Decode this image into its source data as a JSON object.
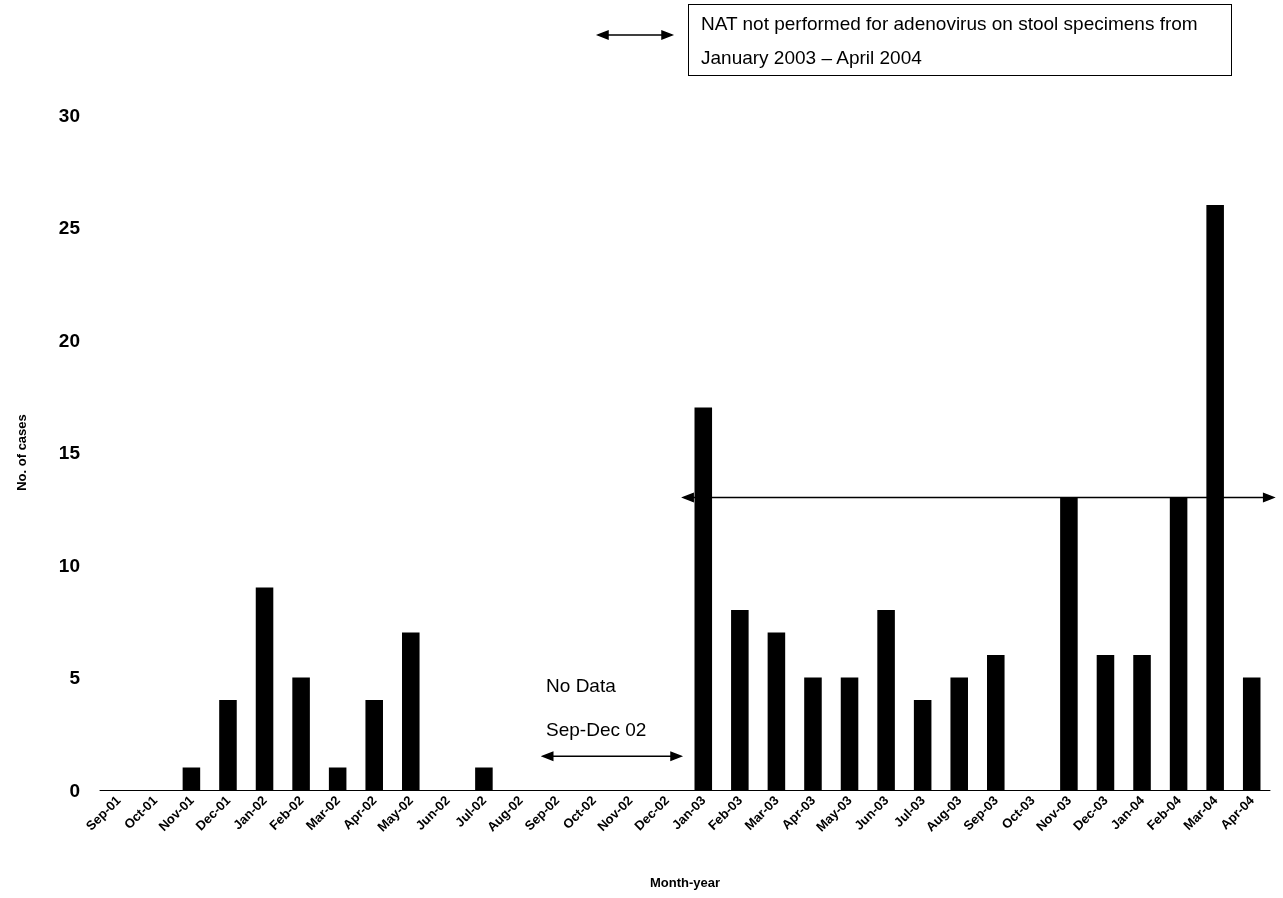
{
  "chart_data": {
    "type": "bar",
    "xlabel": "Month-year",
    "ylabel": "No. of cases",
    "categories": [
      "Sep-01",
      "Oct-01",
      "Nov-01",
      "Dec-01",
      "Jan-02",
      "Feb-02",
      "Mar-02",
      "Apr-02",
      "May-02",
      "Jun-02",
      "Jul-02",
      "Aug-02",
      "Sep-02",
      "Oct-02",
      "Nov-02",
      "Dec-02",
      "Jan-03",
      "Feb-03",
      "Mar-03",
      "Apr-03",
      "May-03",
      "Jun-03",
      "Jul-03",
      "Aug-03",
      "Sep-03",
      "Oct-03",
      "Nov-03",
      "Dec-03",
      "Jan-04",
      "Feb-04",
      "Mar-04",
      "Apr-04"
    ],
    "values": [
      0,
      0,
      1,
      4,
      9,
      5,
      1,
      4,
      7,
      0,
      1,
      0,
      null,
      null,
      null,
      null,
      17,
      8,
      7,
      5,
      5,
      8,
      4,
      5,
      6,
      0,
      13,
      6,
      6,
      13,
      26,
      5
    ],
    "color": "#000000",
    "ylim": [
      0,
      30
    ],
    "yticks": [
      0,
      5,
      10,
      15,
      20,
      25,
      30
    ],
    "grid": false,
    "annotations": [
      "NAT not performed for adenovirus on stool specimens from January 2003 – April 2004",
      "No Data Sep-Dec 02"
    ]
  }
}
